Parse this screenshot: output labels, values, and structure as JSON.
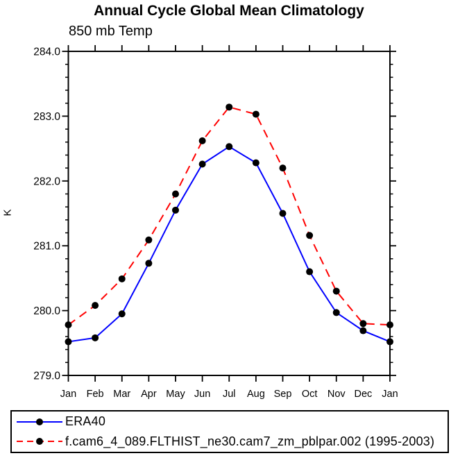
{
  "chart_data": {
    "type": "line",
    "title": "Annual Cycle Global Mean Climatology",
    "subtitle": "850 mb Temp",
    "ylabel": "K",
    "x_categories": [
      "Jan",
      "Feb",
      "Mar",
      "Apr",
      "May",
      "Jun",
      "Jul",
      "Aug",
      "Sep",
      "Oct",
      "Nov",
      "Dec",
      "Jan"
    ],
    "ylim": [
      279.0,
      284.0
    ],
    "ytick_values": [
      279.0,
      280.0,
      281.0,
      282.0,
      283.0,
      284.0
    ],
    "ytick_labels": [
      "279.0",
      "280.0",
      "281.0",
      "282.0",
      "283.0",
      "284.0"
    ],
    "minor_tick_interval": 0.2,
    "grid": false,
    "legend_position": "bottom",
    "marker": {
      "shape": "circle",
      "color": "#000000",
      "radius": 5
    },
    "axis_color": "#000000",
    "series": [
      {
        "name": "ERA40",
        "color": "#0000ff",
        "style": "solid",
        "values": [
          279.52,
          279.58,
          279.95,
          280.73,
          281.55,
          282.26,
          282.53,
          282.28,
          281.5,
          280.6,
          279.97,
          279.69,
          279.52
        ]
      },
      {
        "name": "f.cam6_4_089.FLTHIST_ne30.cam7_zm_pblpar.002 (1995-2003)",
        "color": "#ff0000",
        "style": "dashed",
        "values": [
          279.78,
          280.08,
          280.49,
          281.09,
          281.8,
          282.62,
          283.14,
          283.03,
          282.2,
          281.16,
          280.3,
          279.8,
          279.78
        ]
      }
    ]
  }
}
